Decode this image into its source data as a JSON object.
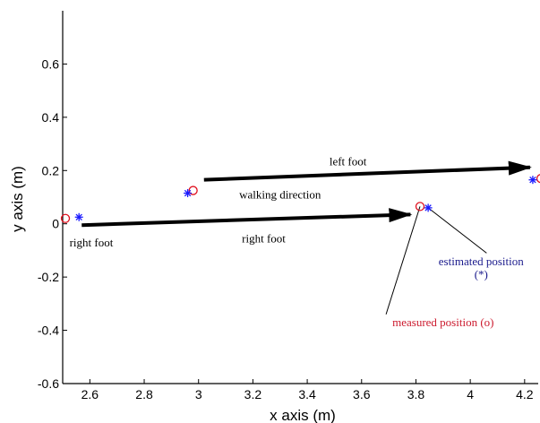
{
  "chart_data": {
    "type": "scatter",
    "xlabel": "x axis (m)",
    "ylabel": "y axis (m)",
    "xlim": [
      2.5,
      4.25
    ],
    "ylim": [
      -0.6,
      0.8
    ],
    "x_ticks": [
      "2.6",
      "2.8",
      "3",
      "3.2",
      "3.4",
      "3.6",
      "3.8",
      "4",
      "4.2"
    ],
    "x_tick_values": [
      2.6,
      2.8,
      3.0,
      3.2,
      3.4,
      3.6,
      3.8,
      4.0,
      4.2
    ],
    "y_ticks": [
      "0.6",
      "0.4",
      "0.2",
      "0",
      "-0.2",
      "-0.4",
      "-0.6"
    ],
    "y_tick_values": [
      0.6,
      0.4,
      0.2,
      0,
      -0.2,
      -0.4,
      -0.6
    ],
    "grid": false,
    "series": [
      {
        "marker": "o",
        "color": "#e0101e",
        "points": [
          [
            2.51,
            0.02
          ],
          [
            2.98,
            0.125
          ],
          [
            3.815,
            0.065
          ],
          [
            4.26,
            0.17
          ]
        ]
      },
      {
        "marker": "*",
        "color": "#1a1aff",
        "points": [
          [
            2.56,
            0.025
          ],
          [
            2.96,
            0.115
          ],
          [
            3.845,
            0.06
          ],
          [
            4.23,
            0.165
          ]
        ]
      }
    ],
    "arrows": [
      {
        "label": "left foot",
        "from": [
          3.02,
          0.165
        ],
        "to": [
          4.22,
          0.212
        ]
      },
      {
        "label": "right foot",
        "from": [
          2.57,
          -0.005
        ],
        "to": [
          3.78,
          0.035
        ]
      }
    ],
    "annotations": [
      {
        "text": "left foot",
        "x": 3.55,
        "y": 0.22,
        "color": "#000000",
        "anchor": "middle"
      },
      {
        "text": "walking direction",
        "x": 3.3,
        "y": 0.095,
        "color": "#000000",
        "anchor": "middle"
      },
      {
        "text": "right foot",
        "x": 2.525,
        "y": -0.085,
        "color": "#000000",
        "anchor": "start"
      },
      {
        "text": "right foot",
        "x": 3.24,
        "y": -0.07,
        "color": "#000000",
        "anchor": "middle"
      },
      {
        "text": "estimated position",
        "x": 4.04,
        "y": -0.155,
        "color": "#1a1a8c",
        "anchor": "middle"
      },
      {
        "text": "(*)",
        "x": 4.04,
        "y": -0.205,
        "color": "#1a1a8c",
        "anchor": "middle"
      },
      {
        "text": "measured position (o)",
        "x": 3.9,
        "y": -0.385,
        "color": "#cc1a2e",
        "anchor": "middle"
      }
    ],
    "leader_lines": [
      {
        "from": [
          3.815,
          0.065
        ],
        "to": [
          3.69,
          -0.34
        ]
      },
      {
        "from": [
          3.845,
          0.06
        ],
        "to": [
          4.06,
          -0.11
        ]
      }
    ]
  }
}
